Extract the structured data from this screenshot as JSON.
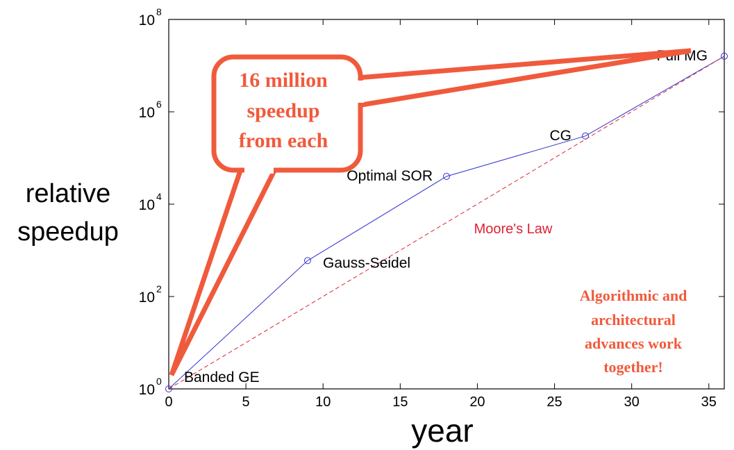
{
  "chart_data": {
    "type": "line",
    "xlabel": "year",
    "ylabel_lines": [
      "relative",
      "speedup"
    ],
    "xlim": [
      0,
      36
    ],
    "ylim": [
      1,
      100000000
    ],
    "y_scale": "log",
    "grid": false,
    "x_ticks": [
      {
        "value": 0,
        "label": "0"
      },
      {
        "value": 5,
        "label": "5"
      },
      {
        "value": 10,
        "label": "10"
      },
      {
        "value": 15,
        "label": "15"
      },
      {
        "value": 20,
        "label": "20"
      },
      {
        "value": 25,
        "label": "25"
      },
      {
        "value": 30,
        "label": "30"
      },
      {
        "value": 35,
        "label": "35"
      }
    ],
    "y_ticks": [
      {
        "value": 1,
        "base": "10",
        "exp": "0"
      },
      {
        "value": 100,
        "base": "10",
        "exp": "2"
      },
      {
        "value": 10000,
        "base": "10",
        "exp": "4"
      },
      {
        "value": 1000000,
        "base": "10",
        "exp": "6"
      },
      {
        "value": 100000000,
        "base": "10",
        "exp": "8"
      }
    ],
    "series": [
      {
        "color": "#3333cc",
        "style": "solid-with-circle-markers",
        "points": [
          {
            "x": 0,
            "y": 1,
            "label": "Banded GE"
          },
          {
            "x": 9,
            "y": 600,
            "label": "Gauss-Seidel"
          },
          {
            "x": 18,
            "y": 40000,
            "label": "Optimal SOR"
          },
          {
            "x": 27,
            "y": 300000,
            "label": "CG"
          },
          {
            "x": 36,
            "y": 16000000,
            "label": "Full MG"
          }
        ]
      },
      {
        "name": "Moore's Law",
        "color": "#dd2233",
        "style": "dashed",
        "points": [
          {
            "x": 0,
            "y": 1
          },
          {
            "x": 36,
            "y": 16000000
          }
        ]
      }
    ],
    "annotations": {
      "callout": {
        "lines": [
          "16 million",
          "speedup",
          "from each"
        ],
        "color": "#f05a3c"
      },
      "note": {
        "lines": [
          "Algorithmic and",
          "architectural",
          "advances work",
          "together!"
        ],
        "color": "#f05a3c"
      }
    }
  }
}
